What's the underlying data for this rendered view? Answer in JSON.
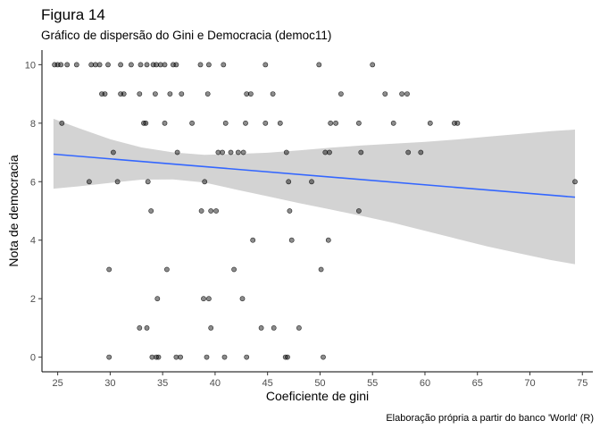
{
  "chart_data": {
    "type": "scatter",
    "title": "Figura 14",
    "subtitle": "Gráfico de dispersão do Gini e Democracia (democ11)",
    "caption": "Elaboração própria a partir do banco 'World' (R)",
    "xlabel": "Coeficiente de gini",
    "ylabel": "Nota de democracia",
    "xlim": [
      23.5,
      76
    ],
    "ylim": [
      -0.5,
      10.5
    ],
    "x_ticks": [
      25,
      30,
      35,
      40,
      45,
      50,
      55,
      60,
      65,
      70,
      75
    ],
    "y_ticks": [
      0,
      2,
      4,
      6,
      8,
      10
    ],
    "grid": false,
    "point_color": "#000000",
    "point_opacity": 0.45,
    "points": [
      {
        "x": 24.7,
        "y": 10
      },
      {
        "x": 25.0,
        "y": 10
      },
      {
        "x": 25.3,
        "y": 10
      },
      {
        "x": 25.9,
        "y": 10
      },
      {
        "x": 26.8,
        "y": 10
      },
      {
        "x": 28.2,
        "y": 10
      },
      {
        "x": 28.6,
        "y": 10
      },
      {
        "x": 29.0,
        "y": 10
      },
      {
        "x": 29.8,
        "y": 10
      },
      {
        "x": 31.0,
        "y": 10
      },
      {
        "x": 32.0,
        "y": 10
      },
      {
        "x": 32.9,
        "y": 10
      },
      {
        "x": 33.5,
        "y": 10
      },
      {
        "x": 34.1,
        "y": 10
      },
      {
        "x": 34.4,
        "y": 10
      },
      {
        "x": 34.8,
        "y": 10
      },
      {
        "x": 35.2,
        "y": 10
      },
      {
        "x": 36.0,
        "y": 10
      },
      {
        "x": 36.3,
        "y": 10
      },
      {
        "x": 38.6,
        "y": 10
      },
      {
        "x": 39.4,
        "y": 10
      },
      {
        "x": 40.8,
        "y": 10
      },
      {
        "x": 44.8,
        "y": 10
      },
      {
        "x": 49.9,
        "y": 10
      },
      {
        "x": 55.0,
        "y": 10
      },
      {
        "x": 29.2,
        "y": 9
      },
      {
        "x": 29.5,
        "y": 9
      },
      {
        "x": 31.0,
        "y": 9
      },
      {
        "x": 31.3,
        "y": 9
      },
      {
        "x": 32.8,
        "y": 9
      },
      {
        "x": 34.3,
        "y": 9
      },
      {
        "x": 35.7,
        "y": 9
      },
      {
        "x": 36.8,
        "y": 9
      },
      {
        "x": 39.3,
        "y": 9
      },
      {
        "x": 43.0,
        "y": 9
      },
      {
        "x": 43.4,
        "y": 9
      },
      {
        "x": 45.5,
        "y": 9
      },
      {
        "x": 52.0,
        "y": 9
      },
      {
        "x": 56.2,
        "y": 9
      },
      {
        "x": 57.8,
        "y": 9
      },
      {
        "x": 58.3,
        "y": 9
      },
      {
        "x": 25.4,
        "y": 8
      },
      {
        "x": 33.2,
        "y": 8
      },
      {
        "x": 33.4,
        "y": 8
      },
      {
        "x": 35.2,
        "y": 8
      },
      {
        "x": 37.8,
        "y": 8
      },
      {
        "x": 41.0,
        "y": 8
      },
      {
        "x": 42.9,
        "y": 8
      },
      {
        "x": 44.8,
        "y": 8
      },
      {
        "x": 46.2,
        "y": 8
      },
      {
        "x": 51.0,
        "y": 8
      },
      {
        "x": 51.5,
        "y": 8
      },
      {
        "x": 53.7,
        "y": 8
      },
      {
        "x": 57.0,
        "y": 8
      },
      {
        "x": 60.5,
        "y": 8
      },
      {
        "x": 62.8,
        "y": 8
      },
      {
        "x": 63.1,
        "y": 8
      },
      {
        "x": 30.3,
        "y": 7
      },
      {
        "x": 36.4,
        "y": 7
      },
      {
        "x": 40.3,
        "y": 7
      },
      {
        "x": 40.7,
        "y": 7
      },
      {
        "x": 41.5,
        "y": 7
      },
      {
        "x": 42.2,
        "y": 7
      },
      {
        "x": 42.7,
        "y": 7
      },
      {
        "x": 46.8,
        "y": 7
      },
      {
        "x": 50.5,
        "y": 7
      },
      {
        "x": 50.9,
        "y": 7
      },
      {
        "x": 53.9,
        "y": 7
      },
      {
        "x": 58.4,
        "y": 7
      },
      {
        "x": 59.6,
        "y": 7
      },
      {
        "x": 28.0,
        "y": 6
      },
      {
        "x": 30.7,
        "y": 6
      },
      {
        "x": 33.6,
        "y": 6
      },
      {
        "x": 39.0,
        "y": 6
      },
      {
        "x": 47.0,
        "y": 6
      },
      {
        "x": 49.2,
        "y": 6
      },
      {
        "x": 74.3,
        "y": 6
      },
      {
        "x": 33.9,
        "y": 5
      },
      {
        "x": 38.7,
        "y": 5
      },
      {
        "x": 39.6,
        "y": 5
      },
      {
        "x": 40.1,
        "y": 5
      },
      {
        "x": 47.1,
        "y": 5
      },
      {
        "x": 53.7,
        "y": 5
      },
      {
        "x": 43.6,
        "y": 4
      },
      {
        "x": 47.3,
        "y": 4
      },
      {
        "x": 50.8,
        "y": 4
      },
      {
        "x": 29.9,
        "y": 3
      },
      {
        "x": 35.4,
        "y": 3
      },
      {
        "x": 41.8,
        "y": 3
      },
      {
        "x": 50.1,
        "y": 3
      },
      {
        "x": 34.5,
        "y": 2
      },
      {
        "x": 38.9,
        "y": 2
      },
      {
        "x": 39.4,
        "y": 2
      },
      {
        "x": 42.6,
        "y": 2
      },
      {
        "x": 32.8,
        "y": 1
      },
      {
        "x": 33.5,
        "y": 1
      },
      {
        "x": 39.6,
        "y": 1
      },
      {
        "x": 44.4,
        "y": 1
      },
      {
        "x": 45.6,
        "y": 1
      },
      {
        "x": 48.0,
        "y": 1
      },
      {
        "x": 29.9,
        "y": 0
      },
      {
        "x": 34.0,
        "y": 0
      },
      {
        "x": 34.4,
        "y": 0
      },
      {
        "x": 34.6,
        "y": 0
      },
      {
        "x": 36.3,
        "y": 0
      },
      {
        "x": 36.7,
        "y": 0
      },
      {
        "x": 39.2,
        "y": 0
      },
      {
        "x": 40.9,
        "y": 0
      },
      {
        "x": 43.0,
        "y": 0
      },
      {
        "x": 46.7,
        "y": 0
      },
      {
        "x": 46.9,
        "y": 0
      },
      {
        "x": 50.3,
        "y": 0
      }
    ],
    "fit_line": {
      "method": "linear",
      "color": "#3366FF",
      "x": [
        24.6,
        74.3
      ],
      "y": [
        6.94,
        5.47
      ]
    },
    "confidence_band": {
      "color": "#d3d3d3",
      "x": [
        24.6,
        27,
        30,
        33,
        36,
        39,
        42,
        45,
        48,
        51,
        54,
        57,
        60,
        63,
        66,
        69,
        72,
        74.3
      ],
      "upper": [
        8.15,
        7.83,
        7.45,
        7.17,
        7.0,
        6.92,
        6.95,
        6.99,
        7.07,
        7.16,
        7.24,
        7.3,
        7.36,
        7.44,
        7.54,
        7.63,
        7.73,
        7.78
      ],
      "lower": [
        5.76,
        5.84,
        5.96,
        6.07,
        6.08,
        5.97,
        5.73,
        5.5,
        5.27,
        5.05,
        4.83,
        4.59,
        4.32,
        4.05,
        3.78,
        3.55,
        3.32,
        3.18
      ]
    }
  }
}
